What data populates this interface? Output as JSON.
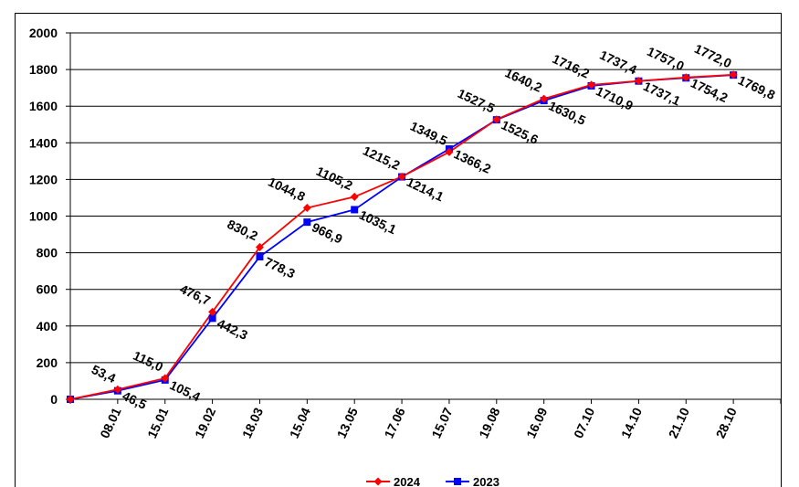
{
  "chart_data": {
    "type": "line",
    "categories": [
      "",
      "08.01",
      "15.01",
      "19.02",
      "18.03",
      "15.04",
      "13.05",
      "17.06",
      "15.07",
      "19.08",
      "16.09",
      "07.10",
      "14.10",
      "21.10",
      "28.10"
    ],
    "series": [
      {
        "name": "2024",
        "color": "#ff0000",
        "marker": "diamond",
        "values": [
          0,
          53.4,
          115.0,
          476.7,
          830.2,
          1044.8,
          1105.2,
          1215.2,
          1349.5,
          1527.5,
          1640.2,
          1716.2,
          1737.4,
          1757.0,
          1772.0
        ],
        "labels": [
          "",
          "53,4",
          "115,0",
          "476,7",
          "830,2",
          "1044,8",
          "1105,2",
          "1215,2",
          "1349,5",
          "1527,5",
          "1640,2",
          "1716,2",
          "1737,4",
          "1757,0",
          "1772,0"
        ]
      },
      {
        "name": "2023",
        "color": "#0000ff",
        "marker": "square",
        "values": [
          0,
          46.5,
          105.4,
          442.3,
          778.3,
          966.9,
          1035.1,
          1214.1,
          1366.2,
          1525.6,
          1630.5,
          1710.9,
          1737.1,
          1754.2,
          1769.8
        ],
        "labels": [
          "",
          "46,5",
          "105,4",
          "442,3",
          "778,3",
          "966,9",
          "1035,1",
          "1214,1",
          "1366,2",
          "1525,6",
          "1630,5",
          "1710,9",
          "1737,1",
          "1754,2",
          "1769,8"
        ]
      }
    ],
    "ylim": [
      0,
      2000
    ],
    "yticks": [
      0,
      200,
      400,
      600,
      800,
      1000,
      1200,
      1400,
      1600,
      1800,
      2000
    ],
    "grid": "horizontal",
    "legend": "bottom"
  }
}
